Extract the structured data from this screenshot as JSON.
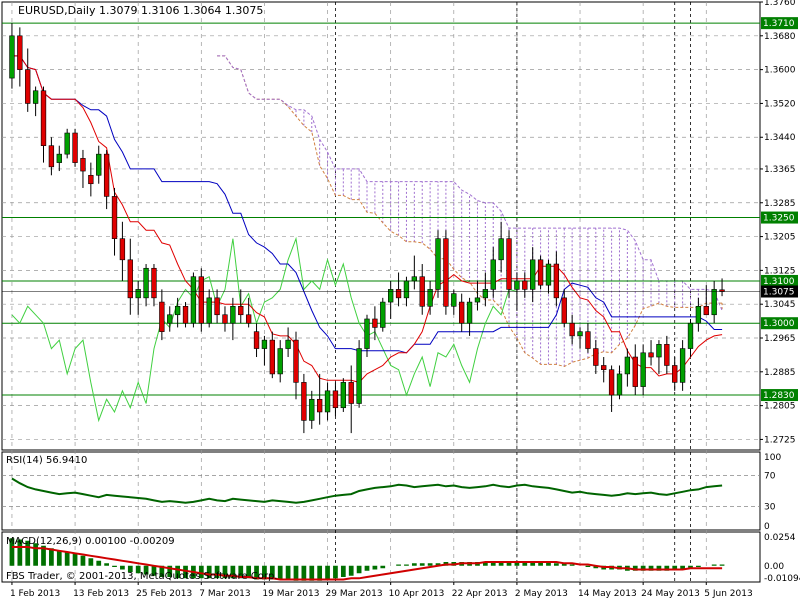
{
  "header": {
    "title": "EURUSD,Daily  1.3079 1.3106 1.3064 1.3075"
  },
  "rsi": {
    "label": "RSI(14) 56.9410"
  },
  "macd": {
    "label": "MACD(12,26,9) 0.00100 -0.00209"
  },
  "footer": {
    "copyright": "FBS Trader, © 2001-2013, MetaQuotes Software Corp."
  },
  "colors": {
    "bull": "#00a000",
    "bear": "#e00000",
    "tenkan": "#e00000",
    "kijun": "#0000c0",
    "chikou": "#40d040",
    "kumo_bull": "#d08040",
    "kumo_bear": "#a070d0",
    "hline": "#008000",
    "rsi": "#006400",
    "macd_hist": "#007000",
    "macd_signal": "#d00000",
    "price_label_bg": "#000000"
  },
  "chart_data": {
    "type": "candlestick",
    "symbol": "EURUSD",
    "timeframe": "Daily",
    "ohlc_current": {
      "open": 1.3079,
      "high": 1.3106,
      "low": 1.3064,
      "close": 1.3075
    },
    "ylim": [
      1.27,
      1.376
    ],
    "y_ticks": [
      "1.3760",
      "1.3680",
      "1.3600",
      "1.3520",
      "1.3440",
      "1.3365",
      "1.3285",
      "1.3205",
      "1.3125",
      "1.3045",
      "1.2965",
      "1.2885",
      "1.2805",
      "1.2725"
    ],
    "x_ticks": [
      "1 Feb 2013",
      "13 Feb 2013",
      "25 Feb 2013",
      "7 Mar 2013",
      "19 Mar 2013",
      "29 Mar 2013",
      "10 Apr 2013",
      "22 Apr 2013",
      "2 May 2013",
      "14 May 2013",
      "24 May 2013",
      "5 Jun 2013"
    ],
    "horizontal_levels": [
      {
        "value": 1.371,
        "label": "1.3710"
      },
      {
        "value": 1.325,
        "label": "1.3250"
      },
      {
        "value": 1.31,
        "label": "1.3100"
      },
      {
        "value": 1.3,
        "label": "1.3000"
      },
      {
        "value": 1.283,
        "label": "1.2830"
      }
    ],
    "current_price_label": "1.3075",
    "candles": [
      [
        1.358,
        1.371,
        1.3555,
        1.368
      ],
      [
        1.368,
        1.37,
        1.356,
        1.36
      ],
      [
        1.36,
        1.365,
        1.35,
        1.352
      ],
      [
        1.352,
        1.356,
        1.349,
        1.355
      ],
      [
        1.355,
        1.356,
        1.338,
        1.342
      ],
      [
        1.342,
        1.344,
        1.335,
        1.337
      ],
      [
        1.338,
        1.342,
        1.336,
        1.34
      ],
      [
        1.34,
        1.346,
        1.339,
        1.345
      ],
      [
        1.345,
        1.346,
        1.337,
        1.338
      ],
      [
        1.339,
        1.341,
        1.332,
        1.336
      ],
      [
        1.335,
        1.338,
        1.33,
        1.333
      ],
      [
        1.335,
        1.342,
        1.333,
        1.34
      ],
      [
        1.34,
        1.341,
        1.327,
        1.33
      ],
      [
        1.33,
        1.332,
        1.316,
        1.32
      ],
      [
        1.32,
        1.324,
        1.31,
        1.315
      ],
      [
        1.315,
        1.32,
        1.302,
        1.306
      ],
      [
        1.306,
        1.31,
        1.302,
        1.308
      ],
      [
        1.306,
        1.314,
        1.304,
        1.313
      ],
      [
        1.313,
        1.314,
        1.304,
        1.306
      ],
      [
        1.305,
        1.308,
        1.296,
        1.298
      ],
      [
        1.3,
        1.304,
        1.298,
        1.302
      ],
      [
        1.302,
        1.306,
        1.299,
        1.304
      ],
      [
        1.304,
        1.305,
        1.299,
        1.3
      ],
      [
        1.3,
        1.312,
        1.299,
        1.311
      ],
      [
        1.311,
        1.313,
        1.298,
        1.3
      ],
      [
        1.3,
        1.308,
        1.299,
        1.306
      ],
      [
        1.306,
        1.308,
        1.3,
        1.302
      ],
      [
        1.302,
        1.304,
        1.298,
        1.3
      ],
      [
        1.3,
        1.306,
        1.296,
        1.304
      ],
      [
        1.304,
        1.308,
        1.3,
        1.302
      ],
      [
        1.302,
        1.306,
        1.299,
        1.3
      ],
      [
        1.298,
        1.3,
        1.292,
        1.294
      ],
      [
        1.294,
        1.297,
        1.29,
        1.296
      ],
      [
        1.296,
        1.298,
        1.287,
        1.288
      ],
      [
        1.288,
        1.296,
        1.286,
        1.294
      ],
      [
        1.294,
        1.299,
        1.292,
        1.296
      ],
      [
        1.296,
        1.298,
        1.282,
        1.286
      ],
      [
        1.286,
        1.288,
        1.274,
        1.277
      ],
      [
        1.277,
        1.284,
        1.275,
        1.282
      ],
      [
        1.282,
        1.288,
        1.276,
        1.279
      ],
      [
        1.279,
        1.286,
        1.277,
        1.284
      ],
      [
        1.284,
        1.286,
        1.278,
        1.28
      ],
      [
        1.28,
        1.287,
        1.279,
        1.286
      ],
      [
        1.286,
        1.29,
        1.274,
        1.281
      ],
      [
        1.281,
        1.296,
        1.28,
        1.294
      ],
      [
        1.294,
        1.302,
        1.292,
        1.301
      ],
      [
        1.301,
        1.304,
        1.296,
        1.299
      ],
      [
        1.299,
        1.306,
        1.298,
        1.305
      ],
      [
        1.305,
        1.31,
        1.301,
        1.308
      ],
      [
        1.308,
        1.312,
        1.304,
        1.306
      ],
      [
        1.306,
        1.311,
        1.304,
        1.31
      ],
      [
        1.31,
        1.316,
        1.308,
        1.311
      ],
      [
        1.311,
        1.314,
        1.302,
        1.304
      ],
      [
        1.304,
        1.31,
        1.302,
        1.308
      ],
      [
        1.308,
        1.322,
        1.306,
        1.32
      ],
      [
        1.32,
        1.322,
        1.302,
        1.304
      ],
      [
        1.304,
        1.308,
        1.302,
        1.307
      ],
      [
        1.305,
        1.307,
        1.298,
        1.3
      ],
      [
        1.3,
        1.306,
        1.297,
        1.305
      ],
      [
        1.305,
        1.31,
        1.303,
        1.306
      ],
      [
        1.306,
        1.312,
        1.304,
        1.308
      ],
      [
        1.308,
        1.318,
        1.306,
        1.315
      ],
      [
        1.315,
        1.324,
        1.312,
        1.32
      ],
      [
        1.32,
        1.322,
        1.306,
        1.308
      ],
      [
        1.308,
        1.312,
        1.303,
        1.31
      ],
      [
        1.31,
        1.312,
        1.306,
        1.308
      ],
      [
        1.308,
        1.318,
        1.305,
        1.315
      ],
      [
        1.315,
        1.316,
        1.308,
        1.309
      ],
      [
        1.309,
        1.315,
        1.307,
        1.314
      ],
      [
        1.314,
        1.317,
        1.304,
        1.306
      ],
      [
        1.306,
        1.308,
        1.299,
        1.3
      ],
      [
        1.3,
        1.302,
        1.295,
        1.297
      ],
      [
        1.297,
        1.299,
        1.294,
        1.298
      ],
      [
        1.298,
        1.3,
        1.293,
        1.294
      ],
      [
        1.294,
        1.296,
        1.288,
        1.29
      ],
      [
        1.29,
        1.292,
        1.286,
        1.289
      ],
      [
        1.289,
        1.29,
        1.279,
        1.283
      ],
      [
        1.283,
        1.29,
        1.282,
        1.288
      ],
      [
        1.288,
        1.294,
        1.285,
        1.292
      ],
      [
        1.292,
        1.295,
        1.283,
        1.285
      ],
      [
        1.285,
        1.295,
        1.283,
        1.293
      ],
      [
        1.293,
        1.296,
        1.29,
        1.292
      ],
      [
        1.292,
        1.296,
        1.288,
        1.295
      ],
      [
        1.295,
        1.297,
        1.288,
        1.29
      ],
      [
        1.29,
        1.292,
        1.284,
        1.286
      ],
      [
        1.286,
        1.296,
        1.284,
        1.294
      ],
      [
        1.294,
        1.301,
        1.292,
        1.3
      ],
      [
        1.3,
        1.306,
        1.298,
        1.304
      ],
      [
        1.304,
        1.309,
        1.302,
        1.302
      ],
      [
        1.302,
        1.31,
        1.3,
        1.308
      ],
      [
        1.3079,
        1.3106,
        1.3064,
        1.3075
      ]
    ],
    "rsi": {
      "period": 14,
      "value": 56.941,
      "ylim": [
        0,
        100
      ],
      "levels": [
        70,
        30
      ],
      "ticks": [
        "100",
        "70",
        "30",
        "0"
      ],
      "values": [
        66,
        60,
        55,
        52,
        50,
        48,
        46,
        47,
        48,
        46,
        44,
        42,
        45,
        44,
        43,
        42,
        41,
        40,
        38,
        36,
        37,
        36,
        35,
        36,
        38,
        40,
        38,
        37,
        40,
        39,
        38,
        37,
        36,
        38,
        37,
        36,
        35,
        36,
        38,
        40,
        42,
        44,
        45,
        46,
        50,
        52,
        54,
        55,
        56,
        58,
        57,
        55,
        56,
        57,
        58,
        56,
        57,
        55,
        54,
        55,
        56,
        58,
        56,
        55,
        57,
        58,
        56,
        55,
        54,
        52,
        50,
        48,
        49,
        47,
        46,
        45,
        44,
        45,
        47,
        46,
        47,
        48,
        46,
        45,
        47,
        49,
        51,
        52,
        55,
        56,
        57
      ]
    },
    "macd": {
      "fast": 12,
      "slow": 26,
      "signal": 9,
      "main": 0.001,
      "signal_value": -0.00209,
      "ylim": [
        -0.013,
        0.027
      ],
      "ticks": [
        "0.0254",
        "0.00",
        "-0.01094"
      ],
      "histogram": [
        0.022,
        0.021,
        0.02,
        0.018,
        0.016,
        0.014,
        0.012,
        0.011,
        0.01,
        0.008,
        0.006,
        0.004,
        0.002,
        -0.001,
        -0.003,
        -0.005,
        -0.006,
        -0.007,
        -0.008,
        -0.009,
        -0.009,
        -0.01,
        -0.01,
        -0.01,
        -0.01,
        -0.01,
        -0.01,
        -0.01,
        -0.01,
        -0.01,
        -0.01,
        -0.011,
        -0.011,
        -0.011,
        -0.011,
        -0.011,
        -0.012,
        -0.012,
        -0.012,
        -0.012,
        -0.011,
        -0.01,
        -0.009,
        -0.008,
        -0.006,
        -0.004,
        -0.003,
        -0.002,
        0.0,
        0.001,
        0.001,
        0.002,
        0.002,
        0.002,
        0.002,
        0.003,
        0.003,
        0.003,
        0.003,
        0.003,
        0.003,
        0.003,
        0.003,
        0.003,
        0.003,
        0.003,
        0.003,
        0.003,
        0.003,
        0.002,
        0.002,
        0.001,
        0.0,
        -0.001,
        -0.002,
        -0.003,
        -0.003,
        -0.003,
        -0.004,
        -0.004,
        -0.004,
        -0.004,
        -0.004,
        -0.004,
        -0.003,
        -0.003,
        -0.002,
        -0.001,
        0.0,
        0.001,
        0.001
      ],
      "signal_line": [
        0.015,
        0.015,
        0.015,
        0.014,
        0.014,
        0.013,
        0.012,
        0.011,
        0.01,
        0.009,
        0.008,
        0.007,
        0.006,
        0.005,
        0.004,
        0.003,
        0.002,
        0.001,
        0.0,
        -0.001,
        -0.002,
        -0.003,
        -0.004,
        -0.005,
        -0.006,
        -0.007,
        -0.007,
        -0.008,
        -0.008,
        -0.009,
        -0.009,
        -0.01,
        -0.01,
        -0.01,
        -0.011,
        -0.011,
        -0.011,
        -0.011,
        -0.011,
        -0.011,
        -0.011,
        -0.011,
        -0.011,
        -0.01,
        -0.01,
        -0.009,
        -0.008,
        -0.007,
        -0.006,
        -0.005,
        -0.004,
        -0.003,
        -0.002,
        -0.001,
        0.0,
        0.001,
        0.001,
        0.002,
        0.002,
        0.002,
        0.003,
        0.003,
        0.003,
        0.003,
        0.003,
        0.003,
        0.003,
        0.003,
        0.003,
        0.003,
        0.002,
        0.002,
        0.001,
        0.001,
        0.0,
        -0.001,
        -0.001,
        -0.002,
        -0.002,
        -0.003,
        -0.003,
        -0.003,
        -0.003,
        -0.003,
        -0.003,
        -0.003,
        -0.002,
        -0.002,
        -0.002,
        -0.002,
        -0.002
      ]
    }
  }
}
